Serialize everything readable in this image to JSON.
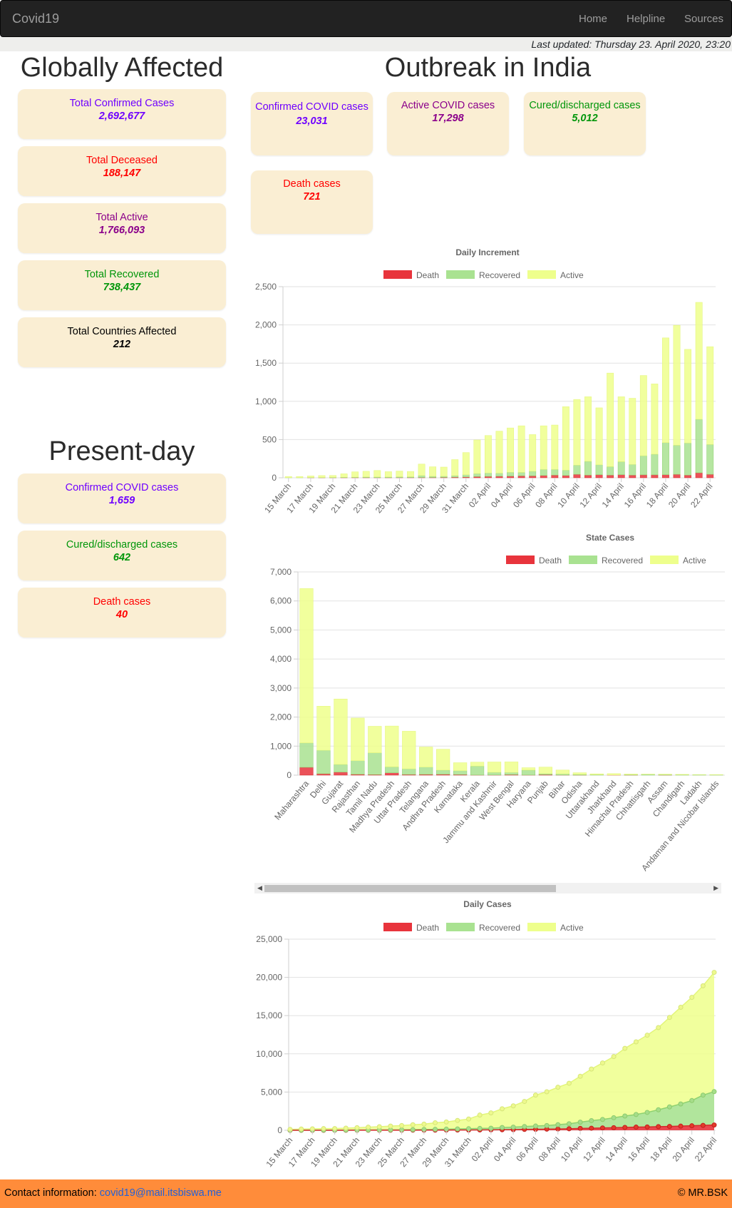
{
  "nav": {
    "brand": "Covid19",
    "links": [
      "Home",
      "Helpline",
      "Sources"
    ]
  },
  "last_updated": "Last updated: Thursday 23. April 2020, 23:20",
  "global": {
    "heading": "Globally Affected",
    "cards": [
      {
        "label": "Total Confirmed Cases",
        "value": "2,692,677",
        "color": "#6f00ff"
      },
      {
        "label": "Total Deceased",
        "value": "188,147",
        "color": "#ff0000"
      },
      {
        "label": "Total Active",
        "value": "1,766,093",
        "color": "#8b008b"
      },
      {
        "label": "Total Recovered",
        "value": "738,437",
        "color": "#00960a"
      },
      {
        "label": "Total Countries Affected",
        "value": "212",
        "color": "#000000"
      }
    ]
  },
  "present": {
    "heading": "Present-day",
    "cards": [
      {
        "label": "Confirmed COVID cases",
        "value": "1,659",
        "color": "#6f00ff"
      },
      {
        "label": "Cured/discharged cases",
        "value": "642",
        "color": "#00960a"
      },
      {
        "label": "Death cases",
        "value": "40",
        "color": "#ff0000"
      }
    ]
  },
  "india": {
    "heading": "Outbreak in India",
    "cards": [
      {
        "label": "Confirmed COVID cases",
        "value": "23,031",
        "color": "#6f00ff"
      },
      {
        "label": "Active COVID cases",
        "value": "17,298",
        "color": "#8b008b"
      },
      {
        "label": "Cured/discharged cases",
        "value": "5,012",
        "color": "#00960a"
      },
      {
        "label": "Death cases",
        "value": "721",
        "color": "#ff0000"
      }
    ]
  },
  "footer": {
    "contact_label": "Contact information:",
    "email": "covid19@mail.itsbiswa.me",
    "copyright": "© MR.BSK"
  },
  "colors": {
    "death": "#e8343c",
    "recovered": "#a9e291",
    "active": "#eeff8c"
  },
  "chart_data": [
    {
      "type": "bar",
      "stacked": true,
      "title": "Daily Increment",
      "legend": [
        "Death",
        "Recovered",
        "Active"
      ],
      "categories": [
        "15 March",
        "16 March",
        "17 March",
        "18 March",
        "19 March",
        "20 March",
        "21 March",
        "22 March",
        "23 March",
        "24 March",
        "25 March",
        "26 March",
        "27 March",
        "28 March",
        "29 March",
        "30 March",
        "31 March",
        "01 April",
        "02 April",
        "03 April",
        "04 April",
        "05 April",
        "06 April",
        "07 April",
        "08 April",
        "09 April",
        "10 April",
        "11 April",
        "12 April",
        "13 April",
        "14 April",
        "15 April",
        "16 April",
        "17 April",
        "18 April",
        "19 April",
        "20 April",
        "21 April",
        "22 April"
      ],
      "tick_labels": [
        "15 March",
        "17 March",
        "19 March",
        "21 March",
        "23 March",
        "25 March",
        "27 March",
        "29 March",
        "31 March",
        "02 April",
        "04 April",
        "06 April",
        "08 April",
        "10 April",
        "12 April",
        "14 April",
        "16 April",
        "18 April",
        "20 April",
        "22 April"
      ],
      "series": [
        {
          "name": "Death",
          "values": [
            0,
            0,
            1,
            1,
            1,
            2,
            3,
            3,
            2,
            2,
            3,
            3,
            4,
            4,
            5,
            8,
            10,
            15,
            18,
            20,
            22,
            25,
            25,
            30,
            35,
            30,
            45,
            35,
            40,
            35,
            40,
            35,
            38,
            38,
            40,
            45,
            35,
            65,
            45
          ]
        },
        {
          "name": "Recovered",
          "values": [
            2,
            2,
            3,
            3,
            4,
            5,
            5,
            7,
            8,
            8,
            10,
            10,
            25,
            15,
            15,
            20,
            30,
            40,
            45,
            40,
            50,
            45,
            60,
            80,
            75,
            70,
            120,
            180,
            130,
            110,
            170,
            140,
            250,
            270,
            420,
            380,
            420,
            700,
            390
          ]
        },
        {
          "name": "Active",
          "values": [
            15,
            15,
            20,
            25,
            25,
            45,
            70,
            75,
            85,
            70,
            75,
            70,
            150,
            125,
            120,
            210,
            290,
            440,
            490,
            550,
            580,
            610,
            480,
            570,
            580,
            830,
            860,
            845,
            745,
            1225,
            850,
            865,
            1050,
            920,
            1370,
            1570,
            1225,
            1530,
            1280
          ]
        }
      ],
      "ylim": [
        0,
        2500
      ],
      "yticks": [
        "0",
        "500",
        "1,000",
        "1,500",
        "2,000",
        "2,500"
      ]
    },
    {
      "type": "bar",
      "stacked": true,
      "title": "State Cases",
      "legend": [
        "Death",
        "Recovered",
        "Active"
      ],
      "categories": [
        "Maharashtra",
        "Delhi",
        "Gujarat",
        "Rajasthan",
        "Tamil Nadu",
        "Madhya Pradesh",
        "Uttar Pradesh",
        "Telangana",
        "Andhra Pradesh",
        "Karnataka",
        "Kerala",
        "Jammu and Kashmir",
        "West Bengal",
        "Haryana",
        "Punjab",
        "Bihar",
        "Odisha",
        "Uttarakhand",
        "Jharkhand",
        "Himachal Pradesh",
        "Chhattisgarh",
        "Assam",
        "Chandigarh",
        "Ladakh",
        "Andaman and Nicobar Islands"
      ],
      "series": [
        {
          "name": "Death",
          "values": [
            269,
            48,
            103,
            27,
            17,
            80,
            21,
            24,
            27,
            18,
            3,
            5,
            15,
            3,
            16,
            2,
            1,
            0,
            3,
            1,
            0,
            1,
            0,
            0,
            0
          ]
        },
        {
          "name": "Recovered",
          "values": [
            840,
            808,
            265,
            470,
            752,
            203,
            196,
            253,
            145,
            133,
            307,
            92,
            79,
            170,
            38,
            42,
            24,
            18,
            0,
            18,
            27,
            19,
            14,
            14,
            11
          ]
        },
        {
          "name": "Active",
          "values": [
            5318,
            1520,
            2255,
            1470,
            914,
            1409,
            1296,
            693,
            721,
            278,
            137,
            357,
            362,
            84,
            223,
            132,
            59,
            28,
            50,
            20,
            9,
            15,
            13,
            4,
            6
          ]
        }
      ],
      "ylim": [
        0,
        7000
      ],
      "yticks": [
        "0",
        "1,000",
        "2,000",
        "3,000",
        "4,000",
        "5,000",
        "6,000",
        "7,000"
      ]
    },
    {
      "type": "area",
      "stacked": true,
      "title": "Daily Cases",
      "legend": [
        "Death",
        "Recovered",
        "Active"
      ],
      "categories": [
        "15 March",
        "16 March",
        "17 March",
        "18 March",
        "19 March",
        "20 March",
        "21 March",
        "22 March",
        "23 March",
        "24 March",
        "25 March",
        "26 March",
        "27 March",
        "28 March",
        "29 March",
        "30 March",
        "31 March",
        "01 April",
        "02 April",
        "03 April",
        "04 April",
        "05 April",
        "06 April",
        "07 April",
        "08 April",
        "09 April",
        "10 April",
        "11 April",
        "12 April",
        "13 April",
        "14 April",
        "15 April",
        "16 April",
        "17 April",
        "18 April",
        "19 April",
        "20 April",
        "21 April",
        "22 April"
      ],
      "tick_labels": [
        "15 March",
        "17 March",
        "19 March",
        "21 March",
        "23 March",
        "25 March",
        "27 March",
        "29 March",
        "31 March",
        "02 April",
        "04 April",
        "06 April",
        "08 April",
        "10 April",
        "12 April",
        "14 April",
        "16 April",
        "18 April",
        "20 April",
        "22 April"
      ],
      "series": [
        {
          "name": "Death",
          "values": [
            2,
            2,
            3,
            3,
            4,
            5,
            7,
            8,
            10,
            12,
            14,
            16,
            20,
            24,
            27,
            32,
            35,
            50,
            56,
            72,
            83,
            111,
            124,
            149,
            169,
            199,
            242,
            273,
            308,
            339,
            377,
            414,
            437,
            480,
            507,
            543,
            590,
            640,
            686
          ]
        },
        {
          "name": "Recovered",
          "values": [
            10,
            13,
            15,
            15,
            20,
            23,
            25,
            27,
            40,
            40,
            45,
            68,
            90,
            100,
            120,
            145,
            170,
            190,
            215,
            290,
            330,
            380,
            430,
            470,
            560,
            650,
            820,
            990,
            1100,
            1300,
            1490,
            1650,
            1900,
            2200,
            2550,
            2900,
            3300,
            3960,
            4370
          ]
        },
        {
          "name": "Active",
          "values": [
            110,
            150,
            170,
            200,
            200,
            250,
            310,
            370,
            420,
            500,
            560,
            640,
            700,
            860,
            940,
            1110,
            1270,
            1750,
            2000,
            2450,
            2780,
            3280,
            4050,
            4420,
            4900,
            5300,
            6000,
            6750,
            7400,
            8000,
            8850,
            9500,
            10100,
            10750,
            11700,
            12650,
            13500,
            14300,
            15600
          ]
        }
      ],
      "ylim": [
        0,
        25000
      ],
      "yticks": [
        "0",
        "5,000",
        "10,000",
        "15,000",
        "20,000",
        "25,000"
      ]
    }
  ]
}
